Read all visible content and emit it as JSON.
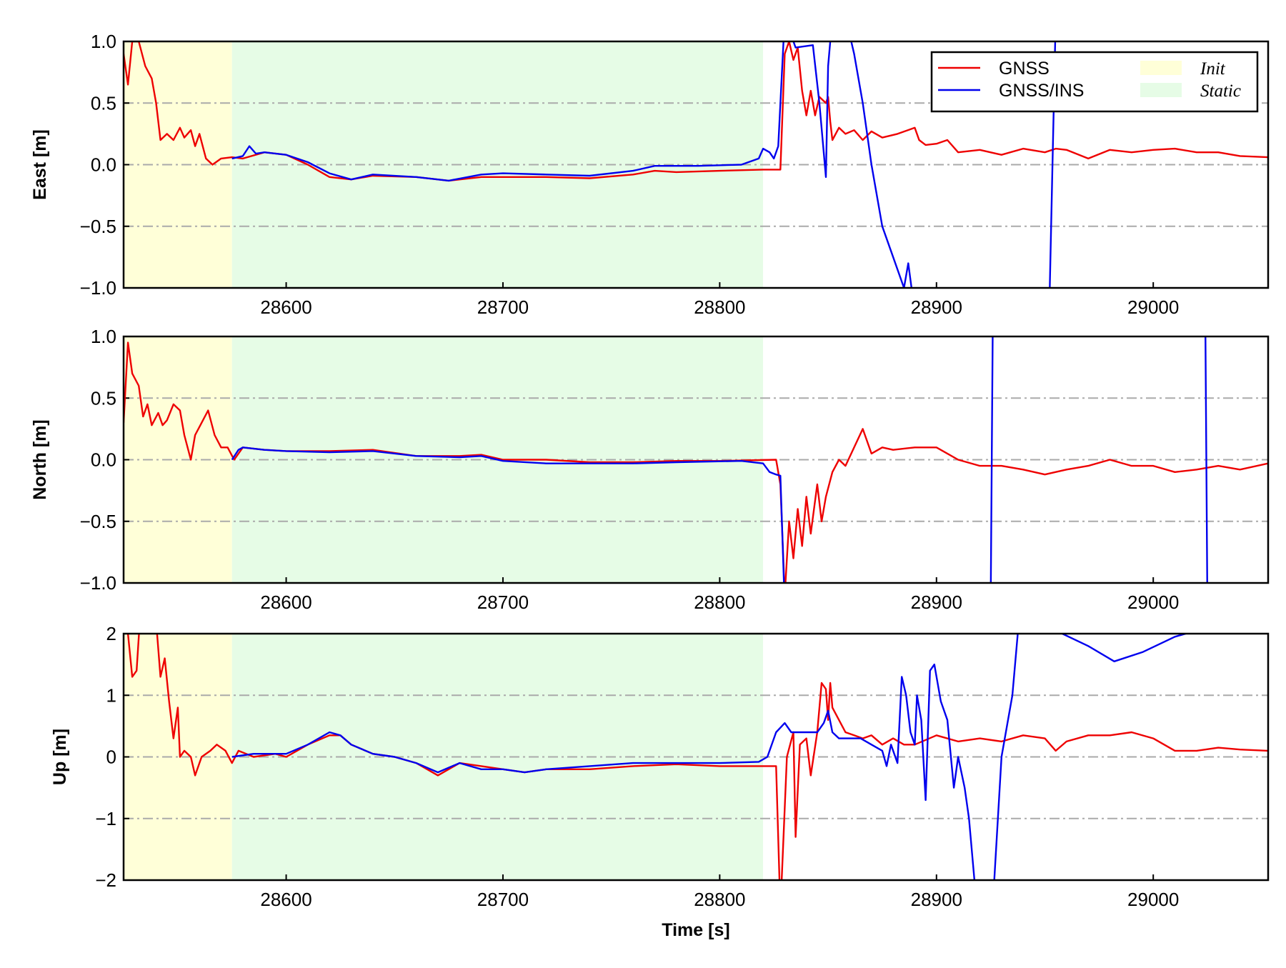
{
  "colors": {
    "gnss": "#ee0000",
    "ins": "#0000ee",
    "init": "#ffffd8",
    "static": "#e6fce6",
    "grid": "#aaaaaa"
  },
  "legend": {
    "gnss": "GNSS",
    "ins": "GNSS/INS",
    "init": "Init",
    "static": "Static",
    "placement": "top-right"
  },
  "xlabel": "Time [s]",
  "chart_data": [
    {
      "type": "line",
      "ylabel": "East [m]",
      "xlim": [
        28525,
        29053
      ],
      "ylim": [
        -1.0,
        1.0
      ],
      "xticks": [
        28600,
        28700,
        28800,
        28900,
        29000
      ],
      "xtick_labels": [
        "28600",
        "28700",
        "28800",
        "28900",
        "29000"
      ],
      "yticks": [
        -1.0,
        -0.5,
        0.0,
        0.5,
        1.0
      ],
      "ytick_labels": [
        "−1.0",
        "−0.5",
        "0.0",
        "0.5",
        "1.0"
      ],
      "spans": [
        {
          "name": "Init",
          "x": [
            28525,
            28575
          ]
        },
        {
          "name": "Static",
          "x": [
            28575,
            28820
          ]
        }
      ],
      "series": [
        {
          "name": "GNSS",
          "x": [
            28525,
            28527,
            28529,
            28532,
            28535,
            28538,
            28540,
            28542,
            28545,
            28548,
            28551,
            28553,
            28556,
            28558,
            28560,
            28563,
            28566,
            28570,
            28575,
            28580,
            28590,
            28600,
            28610,
            28620,
            28630,
            28640,
            28660,
            28675,
            28690,
            28700,
            28720,
            28740,
            28760,
            28770,
            28780,
            28800,
            28820,
            28828,
            28830,
            28832,
            28834,
            28836,
            28838,
            28840,
            28842,
            28844,
            28846,
            28849,
            28850,
            28851,
            28852,
            28855,
            28858,
            28862,
            28866,
            28870,
            28875,
            28882,
            28890,
            28892,
            28895,
            28900,
            28905,
            28910,
            28920,
            28930,
            28940,
            28950,
            28955,
            28960,
            28970,
            28980,
            28990,
            29000,
            29010,
            29020,
            29030,
            29040,
            29053
          ],
          "y": [
            0.9,
            0.65,
            1.0,
            1.0,
            0.8,
            0.7,
            0.5,
            0.2,
            0.25,
            0.2,
            0.3,
            0.22,
            0.28,
            0.15,
            0.25,
            0.05,
            0.0,
            0.05,
            0.06,
            0.05,
            0.1,
            0.08,
            0.0,
            -0.1,
            -0.12,
            -0.09,
            -0.1,
            -0.13,
            -0.1,
            -0.1,
            -0.1,
            -0.11,
            -0.08,
            -0.05,
            -0.06,
            -0.05,
            -0.04,
            -0.04,
            0.9,
            1.0,
            0.85,
            0.95,
            0.6,
            0.4,
            0.6,
            0.4,
            0.55,
            0.5,
            0.55,
            0.35,
            0.2,
            0.3,
            0.25,
            0.28,
            0.2,
            0.27,
            0.22,
            0.25,
            0.3,
            0.2,
            0.16,
            0.17,
            0.2,
            0.1,
            0.12,
            0.08,
            0.13,
            0.1,
            0.13,
            0.12,
            0.05,
            0.12,
            0.1,
            0.12,
            0.13,
            0.1,
            0.1,
            0.07,
            0.06
          ]
        },
        {
          "name": "GNSS/INS",
          "x": [
            28575,
            28580,
            28583,
            28586,
            28590,
            28600,
            28610,
            28620,
            28630,
            28640,
            28660,
            28675,
            28690,
            28700,
            28720,
            28740,
            28760,
            28770,
            28790,
            28810,
            28818,
            28820,
            28823,
            28825,
            28827,
            28830,
            28835,
            28843,
            28846,
            28849,
            28850,
            28852,
            28858,
            28862,
            28866,
            28870,
            28875,
            28879,
            28882,
            28885,
            28887,
            28890,
            28952,
            28955,
            28956
          ],
          "y": [
            0.05,
            0.07,
            0.15,
            0.09,
            0.1,
            0.08,
            0.02,
            -0.07,
            -0.12,
            -0.08,
            -0.1,
            -0.13,
            -0.08,
            -0.07,
            -0.08,
            -0.09,
            -0.05,
            -0.01,
            -0.01,
            0.0,
            0.05,
            0.13,
            0.1,
            0.05,
            0.15,
            1.2,
            0.95,
            0.97,
            0.5,
            -0.1,
            0.8,
            1.2,
            1.2,
            0.9,
            0.5,
            0.0,
            -0.5,
            -0.7,
            -0.85,
            -1.0,
            -0.8,
            -1.2,
            -1.2,
            1.2,
            1.5
          ]
        }
      ]
    },
    {
      "type": "line",
      "ylabel": "North [m]",
      "xlim": [
        28525,
        29053
      ],
      "ylim": [
        -1.0,
        1.0
      ],
      "xticks": [
        28600,
        28700,
        28800,
        28900,
        29000
      ],
      "xtick_labels": [
        "28600",
        "28700",
        "28800",
        "28900",
        "29000"
      ],
      "yticks": [
        -1.0,
        -0.5,
        0.0,
        0.5,
        1.0
      ],
      "ytick_labels": [
        "−1.0",
        "−0.5",
        "0.0",
        "0.5",
        "1.0"
      ],
      "spans": [
        {
          "name": "Init",
          "x": [
            28525,
            28575
          ]
        },
        {
          "name": "Static",
          "x": [
            28575,
            28820
          ]
        }
      ],
      "series": [
        {
          "name": "GNSS",
          "x": [
            28525,
            28527,
            28529,
            28532,
            28534,
            28536,
            28538,
            28541,
            28543,
            28545,
            28548,
            28551,
            28553,
            28556,
            28558,
            28561,
            28564,
            28567,
            28570,
            28573,
            28576,
            28580,
            28590,
            28600,
            28620,
            28640,
            28660,
            28680,
            28690,
            28700,
            28720,
            28740,
            28760,
            28780,
            28800,
            28826,
            28828,
            28830,
            28832,
            28834,
            28836,
            28838,
            28840,
            28842,
            28845,
            28847,
            28849,
            28852,
            28855,
            28858,
            28862,
            28866,
            28870,
            28875,
            28880,
            28890,
            28900,
            28910,
            28920,
            28930,
            28940,
            28950,
            28960,
            28970,
            28980,
            28990,
            29000,
            29010,
            29020,
            29030,
            29040,
            29053
          ],
          "y": [
            0.3,
            0.95,
            0.7,
            0.6,
            0.35,
            0.45,
            0.28,
            0.38,
            0.28,
            0.32,
            0.45,
            0.4,
            0.2,
            0.0,
            0.2,
            0.3,
            0.4,
            0.2,
            0.1,
            0.1,
            0.0,
            0.1,
            0.08,
            0.07,
            0.07,
            0.08,
            0.03,
            0.03,
            0.04,
            0.0,
            0.0,
            -0.02,
            -0.02,
            -0.01,
            -0.01,
            0.0,
            -0.2,
            -1.1,
            -0.5,
            -0.8,
            -0.4,
            -0.7,
            -0.3,
            -0.6,
            -0.2,
            -0.5,
            -0.3,
            -0.1,
            0.0,
            -0.05,
            0.1,
            0.25,
            0.05,
            0.1,
            0.08,
            0.1,
            0.1,
            0.0,
            -0.05,
            -0.05,
            -0.08,
            -0.12,
            -0.08,
            -0.05,
            0.0,
            -0.05,
            -0.05,
            -0.1,
            -0.08,
            -0.05,
            -0.08,
            -0.03
          ]
        },
        {
          "name": "GNSS/INS",
          "x": [
            28575,
            28578,
            28580,
            28590,
            28600,
            28620,
            28640,
            28660,
            28680,
            28690,
            28700,
            28720,
            28740,
            28760,
            28780,
            28810,
            28820,
            28823,
            28826,
            28828,
            28830,
            28925,
            28926,
            29024,
            29025
          ],
          "y": [
            0.0,
            0.08,
            0.1,
            0.08,
            0.07,
            0.06,
            0.07,
            0.03,
            0.02,
            0.03,
            -0.01,
            -0.03,
            -0.03,
            -0.03,
            -0.02,
            -0.01,
            -0.03,
            -0.1,
            -0.12,
            -0.13,
            -1.2,
            -1.2,
            1.2,
            1.2,
            -1.2
          ]
        }
      ]
    },
    {
      "type": "line",
      "ylabel": "Up [m]",
      "xlim": [
        28525,
        29053
      ],
      "ylim": [
        -2,
        2
      ],
      "xticks": [
        28600,
        28700,
        28800,
        28900,
        29000
      ],
      "xtick_labels": [
        "28600",
        "28700",
        "28800",
        "28900",
        "29000"
      ],
      "yticks": [
        -2,
        -1,
        0,
        1,
        2
      ],
      "ytick_labels": [
        "−2",
        "−1",
        "0",
        "1",
        "2"
      ],
      "spans": [
        {
          "name": "Init",
          "x": [
            28525,
            28575
          ]
        },
        {
          "name": "Static",
          "x": [
            28575,
            28820
          ]
        }
      ],
      "series": [
        {
          "name": "GNSS",
          "x": [
            28525,
            28527,
            28529,
            28531,
            28533,
            28537,
            28540,
            28542,
            28544,
            28546,
            28548,
            28550,
            28551,
            28553,
            28556,
            28558,
            28561,
            28565,
            28568,
            28572,
            28575,
            28578,
            28585,
            28595,
            28600,
            28610,
            28620,
            28625,
            28630,
            28640,
            28650,
            28660,
            28670,
            28680,
            28690,
            28700,
            28710,
            28720,
            28740,
            28760,
            28780,
            28800,
            28826,
            28828,
            28831,
            28834,
            28835,
            28837,
            28840,
            28842,
            28845,
            28847,
            28849,
            28850,
            28851,
            28852,
            28855,
            28858,
            28862,
            28866,
            28870,
            28875,
            28880,
            28885,
            28890,
            28900,
            28910,
            28920,
            28930,
            28940,
            28950,
            28955,
            28960,
            28970,
            28980,
            28990,
            29000,
            29010,
            29020,
            29030,
            29040,
            29053
          ],
          "y": [
            2.5,
            2.0,
            1.3,
            1.4,
            2.5,
            2.5,
            2.2,
            1.3,
            1.6,
            0.9,
            0.3,
            0.8,
            0.0,
            0.1,
            0.0,
            -0.3,
            0.0,
            0.1,
            0.2,
            0.1,
            -0.1,
            0.1,
            0.0,
            0.05,
            0.0,
            0.2,
            0.35,
            0.35,
            0.2,
            0.05,
            0.0,
            -0.1,
            -0.3,
            -0.1,
            -0.15,
            -0.2,
            -0.25,
            -0.2,
            -0.2,
            -0.15,
            -0.12,
            -0.15,
            -0.15,
            -2.5,
            0.0,
            0.4,
            -1.3,
            0.2,
            0.3,
            -0.3,
            0.4,
            1.2,
            1.1,
            0.6,
            1.2,
            0.8,
            0.6,
            0.4,
            0.35,
            0.3,
            0.35,
            0.2,
            0.3,
            0.2,
            0.2,
            0.35,
            0.25,
            0.3,
            0.25,
            0.35,
            0.3,
            0.1,
            0.25,
            0.35,
            0.35,
            0.4,
            0.3,
            0.1,
            0.1,
            0.15,
            0.12,
            0.1
          ]
        },
        {
          "name": "GNSS/INS",
          "x": [
            28575,
            28585,
            28600,
            28610,
            28620,
            28625,
            28630,
            28640,
            28650,
            28660,
            28670,
            28680,
            28690,
            28700,
            28710,
            28720,
            28740,
            28760,
            28780,
            28800,
            28818,
            28822,
            28826,
            28830,
            28833,
            28840,
            28845,
            28848,
            28850,
            28852,
            28855,
            28860,
            28865,
            28870,
            28875,
            28877,
            28879,
            28882,
            28884,
            28886,
            28888,
            28890,
            28891,
            28893,
            28895,
            28897,
            28899,
            28902,
            28905,
            28908,
            28910,
            28913,
            28915,
            28920,
            28925,
            28930,
            28935,
            28940,
            28958,
            28970,
            28982,
            28995,
            29010,
            29020
          ],
          "y": [
            0.0,
            0.05,
            0.05,
            0.2,
            0.4,
            0.35,
            0.2,
            0.05,
            0.0,
            -0.1,
            -0.25,
            -0.1,
            -0.2,
            -0.2,
            -0.25,
            -0.2,
            -0.15,
            -0.1,
            -0.1,
            -0.1,
            -0.08,
            0.0,
            0.4,
            0.55,
            0.4,
            0.4,
            0.4,
            0.55,
            0.75,
            0.4,
            0.3,
            0.3,
            0.3,
            0.2,
            0.1,
            -0.15,
            0.2,
            -0.1,
            1.3,
            1.0,
            0.4,
            0.2,
            1.0,
            0.6,
            -0.7,
            1.4,
            1.5,
            0.9,
            0.6,
            -0.5,
            0.0,
            -0.5,
            -1.0,
            -3.0,
            -3.0,
            0.0,
            1.0,
            3.0,
            2.0,
            1.8,
            1.55,
            1.7,
            1.95,
            2.05
          ]
        }
      ]
    }
  ]
}
